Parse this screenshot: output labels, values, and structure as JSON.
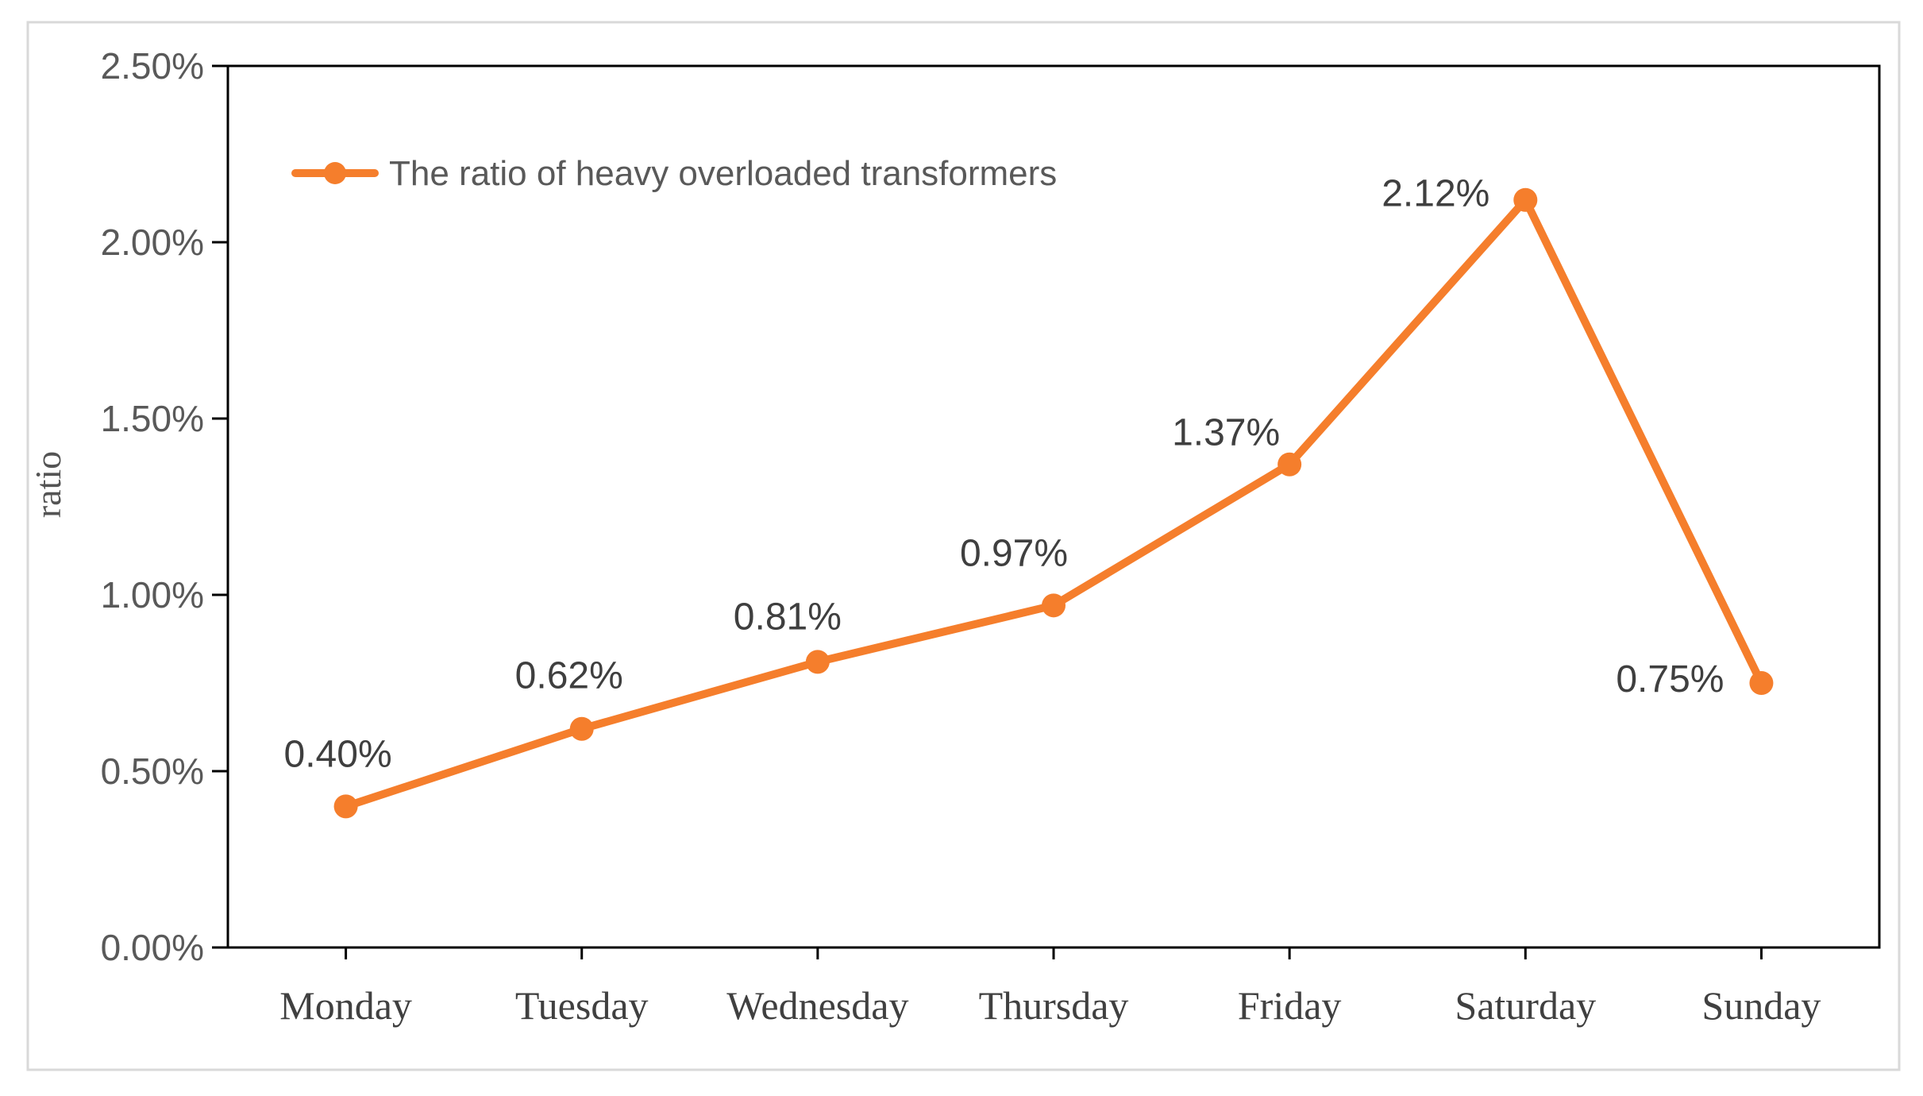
{
  "chart_data": {
    "type": "line",
    "title": "",
    "xlabel": "",
    "ylabel": "ratio",
    "categories": [
      "Monday",
      "Tuesday",
      "Wednesday",
      "Thursday",
      "Friday",
      "Saturday",
      "Sunday"
    ],
    "series": [
      {
        "name": "The ratio of heavy overloaded transformers",
        "values": [
          0.4,
          0.62,
          0.81,
          0.97,
          1.37,
          2.12,
          0.75
        ],
        "unit": "%"
      }
    ],
    "data_labels": [
      "0.40%",
      "0.62%",
      "0.81%",
      "0.97%",
      "1.37%",
      "2.12%",
      "0.75%"
    ],
    "y_ticks": {
      "values": [
        0,
        0.5,
        1.0,
        1.5,
        2.0,
        2.5
      ],
      "labels": [
        "0.00%",
        "0.50%",
        "1.00%",
        "1.50%",
        "2.00%",
        "2.50%"
      ]
    },
    "ylim": [
      0,
      2.5
    ],
    "grid": false,
    "legend_position": "top-left-inside",
    "marker": "circle",
    "colors": {
      "line": "#F57E2C",
      "marker": "#F57E2C",
      "axis": "#000000",
      "tick_label": "#595959",
      "data_label": "#3F3F3F",
      "day_label": "#404040",
      "legend_text": "#595959",
      "figure_border": "#D9D9D9",
      "background": "#FFFFFF"
    }
  }
}
